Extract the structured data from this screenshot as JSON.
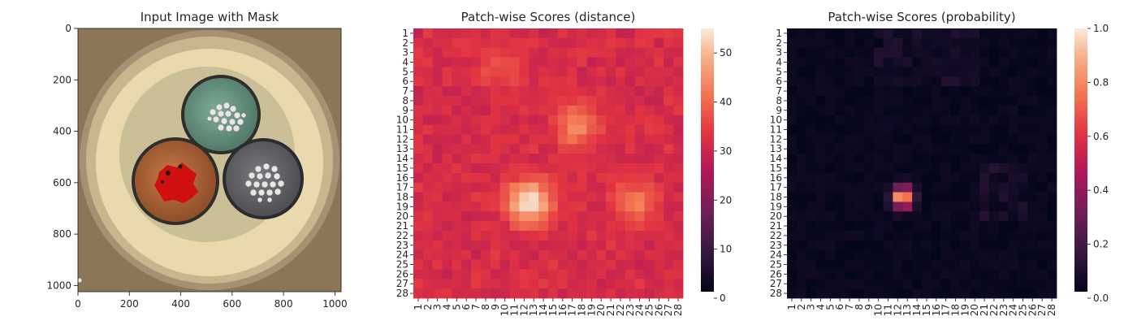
{
  "chart_data": [
    {
      "type": "image",
      "title": "Input Image with Mask",
      "xticks": [
        0,
        200,
        400,
        600,
        800,
        1000
      ],
      "yticks": [
        0,
        200,
        400,
        600,
        800,
        1000
      ],
      "xlim": [
        0,
        1024
      ],
      "ylim": [
        1024,
        0
      ]
    },
    {
      "type": "heatmap",
      "title": "Patch-wise Scores (distance)",
      "grid_size": 28,
      "colorbar_range": [
        0,
        55
      ],
      "colorbar_ticks": [
        0,
        10,
        20,
        30,
        40,
        50
      ],
      "colormap": "rocket",
      "hotspots": [
        {
          "row": 17.5,
          "col": 11.5,
          "peak": 55
        },
        {
          "row": 9.5,
          "col": 16.5,
          "peak": 44
        },
        {
          "row": 17.5,
          "col": 22.5,
          "peak": 42
        },
        {
          "row": 3.5,
          "col": 8.5,
          "peak": 38
        }
      ],
      "base_value": 30
    },
    {
      "type": "heatmap",
      "title": "Patch-wise Scores (probability)",
      "grid_size": 28,
      "colorbar_range": [
        0,
        1
      ],
      "colorbar_ticks": [
        "0.0",
        "0.2",
        "0.4",
        "0.6",
        "0.8",
        "1.0"
      ],
      "colormap": "rocket",
      "hotspots": [
        {
          "row": 17,
          "col": 11.5,
          "peak": 1.0
        }
      ],
      "base_value": 0.0
    }
  ]
}
